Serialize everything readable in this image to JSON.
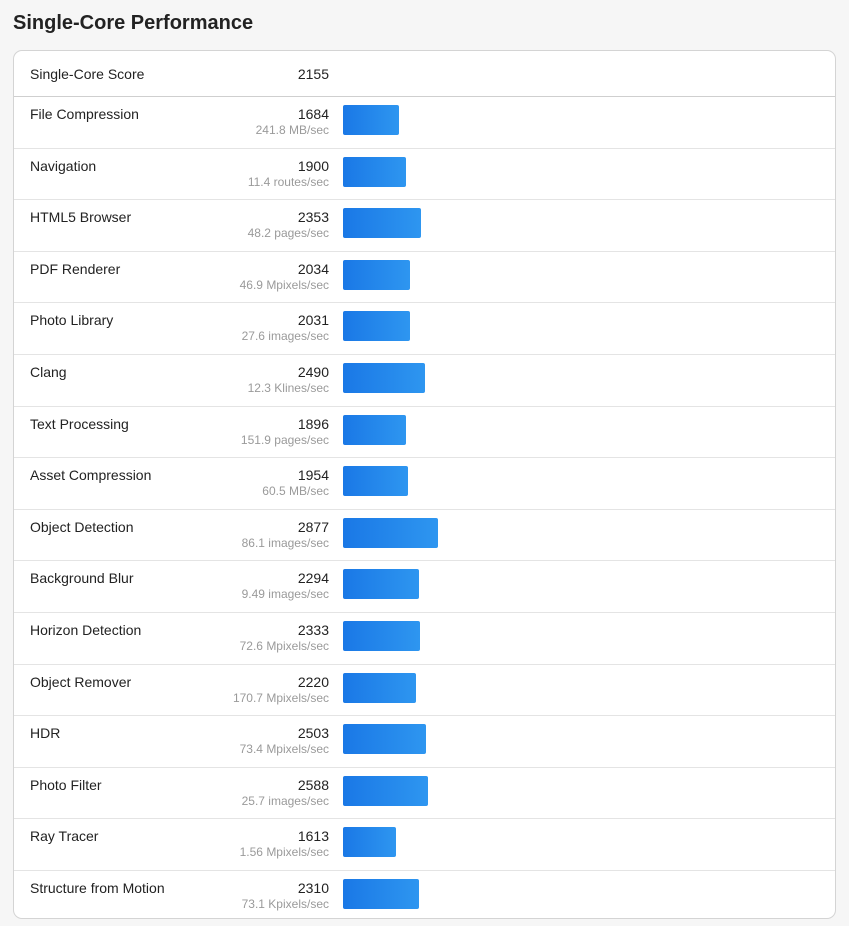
{
  "section": {
    "title": "Single-Core Performance"
  },
  "summary": {
    "label": "Single-Core Score",
    "score": "2155"
  },
  "colors": {
    "bar_start": "#1a78e6",
    "bar_end": "#2e96f0"
  },
  "benchmarks": [
    {
      "name": "File Compression",
      "score": "1684",
      "rate": "241.8 MB/sec"
    },
    {
      "name": "Navigation",
      "score": "1900",
      "rate": "11.4 routes/sec"
    },
    {
      "name": "HTML5 Browser",
      "score": "2353",
      "rate": "48.2 pages/sec"
    },
    {
      "name": "PDF Renderer",
      "score": "2034",
      "rate": "46.9 Mpixels/sec"
    },
    {
      "name": "Photo Library",
      "score": "2031",
      "rate": "27.6 images/sec"
    },
    {
      "name": "Clang",
      "score": "2490",
      "rate": "12.3 Klines/sec"
    },
    {
      "name": "Text Processing",
      "score": "1896",
      "rate": "151.9 pages/sec"
    },
    {
      "name": "Asset Compression",
      "score": "1954",
      "rate": "60.5 MB/sec"
    },
    {
      "name": "Object Detection",
      "score": "2877",
      "rate": "86.1 images/sec"
    },
    {
      "name": "Background Blur",
      "score": "2294",
      "rate": "9.49 images/sec"
    },
    {
      "name": "Horizon Detection",
      "score": "2333",
      "rate": "72.6 Mpixels/sec"
    },
    {
      "name": "Object Remover",
      "score": "2220",
      "rate": "170.7 Mpixels/sec"
    },
    {
      "name": "HDR",
      "score": "2503",
      "rate": "73.4 Mpixels/sec"
    },
    {
      "name": "Photo Filter",
      "score": "2588",
      "rate": "25.7 images/sec"
    },
    {
      "name": "Ray Tracer",
      "score": "1613",
      "rate": "1.56 Mpixels/sec"
    },
    {
      "name": "Structure from Motion",
      "score": "2310",
      "rate": "73.1 Kpixels/sec"
    }
  ]
}
